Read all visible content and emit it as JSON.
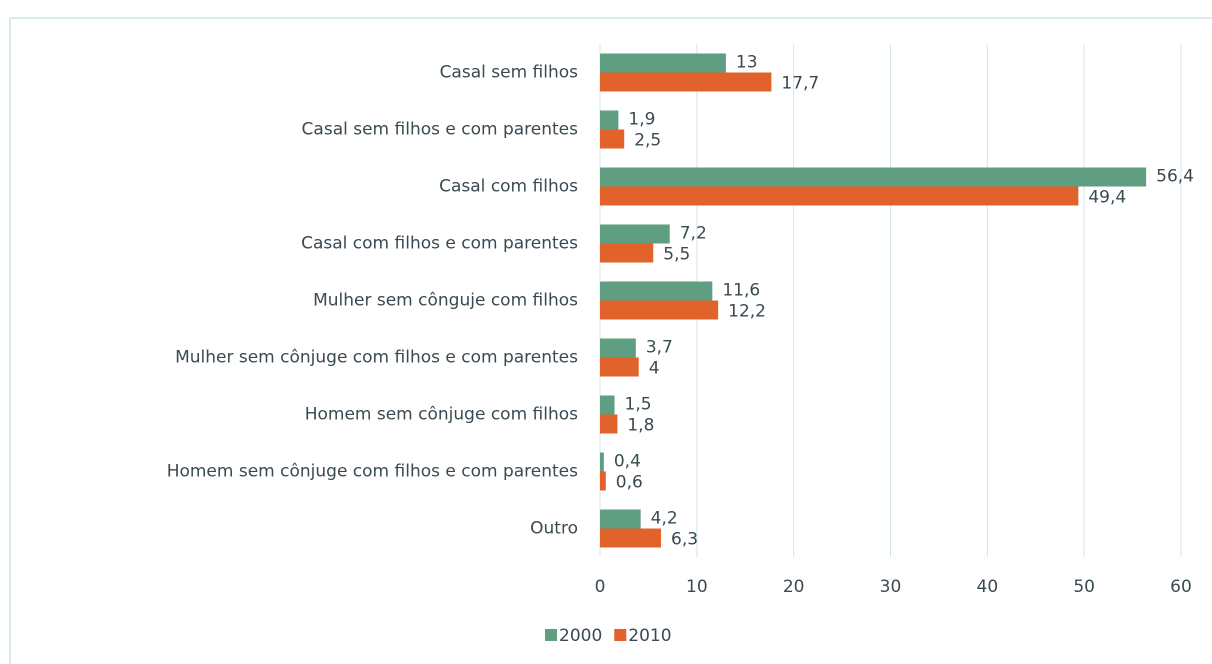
{
  "chart_data": {
    "type": "bar",
    "orientation": "horizontal",
    "categories": [
      "Casal sem filhos",
      "Casal sem filhos e com parentes",
      "Casal com filhos",
      "Casal com filhos e com parentes",
      "Mulher sem cônguje com filhos",
      "Mulher sem cônjuge com filhos e com parentes",
      "Homem sem cônjuge com filhos",
      "Homem sem cônjuge com filhos e com parentes",
      "Outro"
    ],
    "series": [
      {
        "name": "2000",
        "color": "#5f9e80",
        "values": [
          13,
          1.9,
          56.4,
          7.2,
          11.6,
          3.7,
          1.5,
          0.4,
          4.2
        ],
        "value_labels": [
          "13",
          "1,9",
          "56,4",
          "7,2",
          "11,6",
          "3,7",
          "1,5",
          "0,4",
          "4,2"
        ]
      },
      {
        "name": "2010",
        "color": "#e2622c",
        "values": [
          17.7,
          2.5,
          49.4,
          5.5,
          12.2,
          4,
          1.8,
          0.6,
          6.3
        ],
        "value_labels": [
          "17,7",
          "2,5",
          "49,4",
          "5,5",
          "12,2",
          "4",
          "1,8",
          "0,6",
          "6,3"
        ]
      }
    ],
    "xlim": [
      0,
      60
    ],
    "xticks": [
      0,
      10,
      20,
      30,
      40,
      50,
      60
    ],
    "grid": true,
    "legend": "bottom"
  }
}
